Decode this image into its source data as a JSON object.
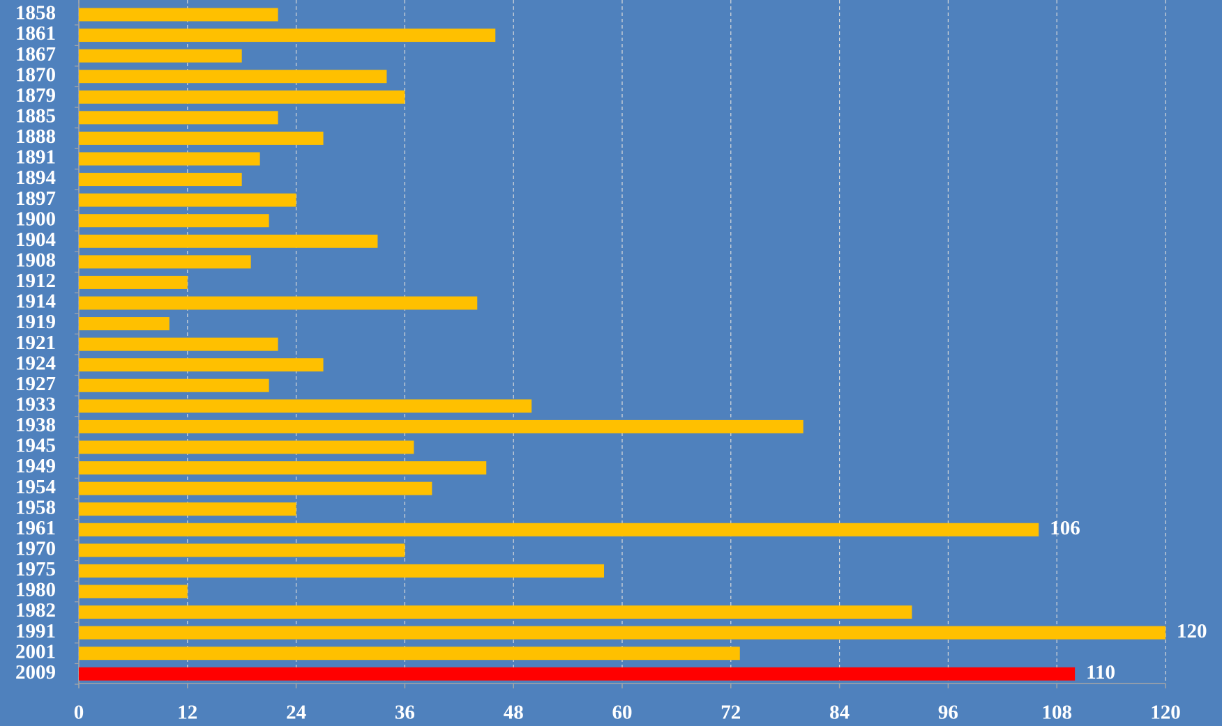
{
  "chart_data": {
    "type": "bar",
    "orientation": "horizontal",
    "categories": [
      "1858",
      "1861",
      "1867",
      "1870",
      "1879",
      "1885",
      "1888",
      "1891",
      "1894",
      "1897",
      "1900",
      "1904",
      "1908",
      "1912",
      "1914",
      "1919",
      "1921",
      "1924",
      "1927",
      "1933",
      "1938",
      "1945",
      "1949",
      "1954",
      "1958",
      "1961",
      "1970",
      "1975",
      "1980",
      "1982",
      "1991",
      "2001",
      "2009"
    ],
    "values": [
      22,
      46,
      18,
      34,
      36,
      22,
      27,
      20,
      18,
      24,
      21,
      33,
      19,
      12,
      44,
      10,
      22,
      27,
      21,
      50,
      80,
      37,
      45,
      39,
      24,
      106,
      36,
      58,
      12,
      92,
      120,
      73,
      110
    ],
    "value_labels": [
      null,
      null,
      null,
      null,
      null,
      null,
      null,
      null,
      null,
      null,
      null,
      null,
      null,
      null,
      null,
      null,
      null,
      null,
      null,
      null,
      null,
      null,
      null,
      null,
      null,
      "106",
      null,
      null,
      null,
      null,
      "120",
      null,
      "110"
    ],
    "colors": [
      "#ffc000",
      "#ffc000",
      "#ffc000",
      "#ffc000",
      "#ffc000",
      "#ffc000",
      "#ffc000",
      "#ffc000",
      "#ffc000",
      "#ffc000",
      "#ffc000",
      "#ffc000",
      "#ffc000",
      "#ffc000",
      "#ffc000",
      "#ffc000",
      "#ffc000",
      "#ffc000",
      "#ffc000",
      "#ffc000",
      "#ffc000",
      "#ffc000",
      "#ffc000",
      "#ffc000",
      "#ffc000",
      "#ffc000",
      "#ffc000",
      "#ffc000",
      "#ffc000",
      "#ffc000",
      "#ffc000",
      "#ffc000",
      "#ff0000"
    ],
    "xlim": [
      0,
      120
    ],
    "xticks": [
      0,
      12,
      24,
      36,
      48,
      60,
      72,
      84,
      96,
      108,
      120
    ],
    "grid": true
  }
}
